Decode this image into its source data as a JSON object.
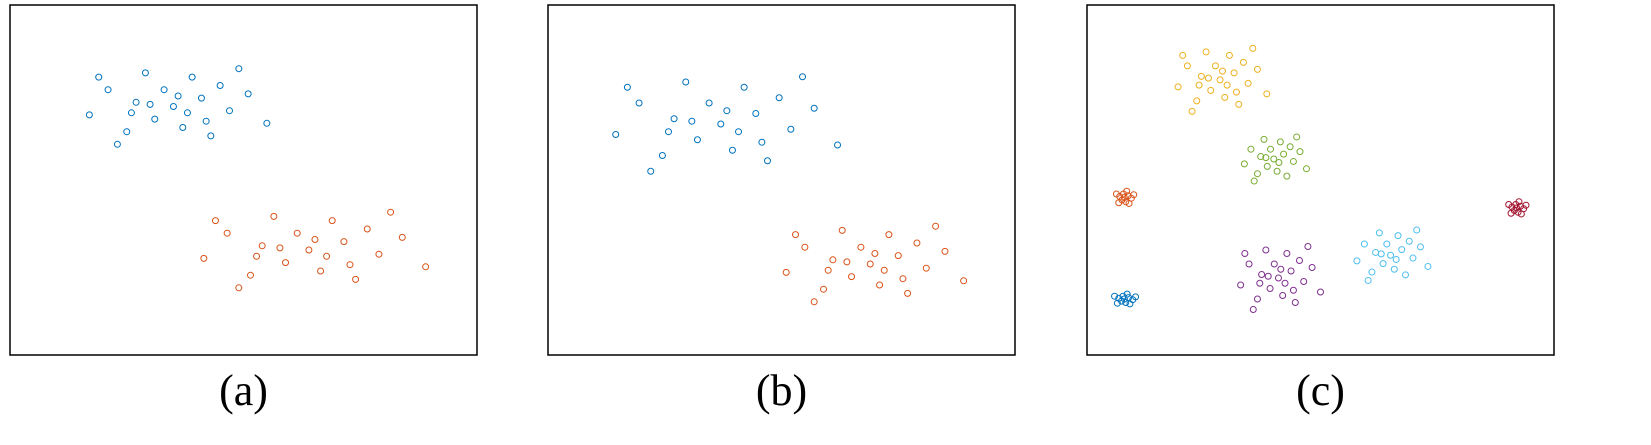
{
  "chart_data": [
    {
      "type": "scatter",
      "caption": "(a)",
      "xlim": [
        0,
        100
      ],
      "ylim": [
        0,
        100
      ],
      "series": [
        {
          "color": "#0072bd",
          "x": [
            35,
            41,
            27,
            37,
            31,
            47,
            21,
            39,
            25,
            51,
            33,
            43,
            17,
            45,
            29,
            55,
            23,
            38,
            30,
            49,
            19,
            42,
            26,
            36
          ],
          "values": [
            71,
            73.4,
            72.2,
            65,
            67.4,
            69.8,
            75.8,
            79.4,
            63.8,
            74.6,
            75.8,
            62.6,
            68.6,
            77,
            80.6,
            66.2,
            60.2,
            69.2,
            71.6,
            81.8,
            79.4,
            66.8,
            69.2,
            74
          ]
        },
        {
          "color": "#d95319",
          "x": [
            64,
            71.5,
            54,
            66.5,
            59,
            79,
            46.5,
            69,
            51.5,
            84,
            61.5,
            74,
            41.5,
            76.5,
            56.5,
            89,
            49,
            67.8,
            57.8,
            81.5,
            44,
            72.8,
            52.8,
            65.3
          ],
          "values": [
            30,
            32.4,
            31.2,
            24,
            26.4,
            28.8,
            34.8,
            38.4,
            22.8,
            33.6,
            34.8,
            21.6,
            27.6,
            36,
            39.6,
            25.2,
            19.2,
            28.2,
            30.6,
            40.8,
            38.4,
            25.8,
            28.2,
            33
          ]
        }
      ]
    },
    {
      "type": "scatter",
      "caption": "(b)",
      "xlim": [
        0,
        100
      ],
      "ylim": [
        0,
        100
      ],
      "series": [
        {
          "color": "#0072bd",
          "x": [
            37,
            44.5,
            27,
            39.5,
            32,
            52,
            19.5,
            42,
            24.5,
            57,
            34.5,
            47,
            14.5,
            49.5,
            29.5,
            62,
            22,
            40.8,
            30.8,
            54.5,
            17,
            45.8,
            25.8,
            38.3
          ],
          "values": [
            66,
            69,
            67.5,
            58.5,
            61.5,
            64.5,
            72,
            76.5,
            57,
            70.5,
            72,
            55.5,
            63,
            73.5,
            78,
            60,
            52.5,
            63.8,
            66.8,
            79.5,
            76.5,
            60.8,
            63.8,
            69.8
          ]
        },
        {
          "color": "#d95319",
          "x": [
            69,
            75,
            61,
            71,
            65,
            81,
            55,
            73,
            59,
            85,
            67,
            77,
            51,
            79,
            63,
            89,
            57,
            72,
            64,
            83,
            53,
            76,
            60,
            70
          ],
          "values": [
            26,
            28.4,
            27.2,
            20,
            22.4,
            24.8,
            30.8,
            34.4,
            18.8,
            29.6,
            30.8,
            17.6,
            23.6,
            32,
            35.6,
            21.2,
            15.2,
            24.2,
            26.6,
            36.8,
            34.4,
            21.8,
            24.2,
            29
          ]
        }
      ]
    },
    {
      "type": "scatter",
      "caption": "(c)",
      "xlim": [
        0,
        100
      ],
      "ylim": [
        0,
        100
      ],
      "series": [
        {
          "color": "#edb120",
          "x": [
            28.5,
            31.5,
            24.5,
            29.5,
            26.5,
            34.5,
            21.5,
            30.5,
            23.5,
            36.5,
            27.5,
            32.5,
            19.5,
            33.5,
            25.5,
            38.5,
            22.5,
            30,
            26,
            35.5,
            20.5,
            32,
            24,
            29
          ],
          "values": [
            78.6,
            80.6,
            79.6,
            73.6,
            75.6,
            77.6,
            82.6,
            85.6,
            72.6,
            81.6,
            82.6,
            71.6,
            76.6,
            83.6,
            86.6,
            74.6,
            69.6,
            77.1,
            79.1,
            87.6,
            85.6,
            75.1,
            77.1,
            81.1
          ]
        },
        {
          "color": "#77ac30",
          "x": [
            40,
            42.1,
            37.2,
            40.7,
            38.6,
            44.2,
            35.1,
            41.4,
            36.5,
            45.6,
            39.3,
            42.8,
            33.7,
            43.5,
            37.9,
            47,
            35.8,
            41.1,
            38.3,
            44.9
          ],
          "values": [
            56,
            57.4,
            56.7,
            52.5,
            53.9,
            55.3,
            58.8,
            60.9,
            51.8,
            58.1,
            58.8,
            51.1,
            54.6,
            59.5,
            61.6,
            53.2,
            49.7,
            55,
            56.4,
            62.3
          ]
        },
        {
          "color": "#d95319",
          "x": [
            8,
            8.8,
            7,
            8.3,
            7.5,
            9.5,
            6.3,
            8.5,
            6.8,
            10,
            7.8,
            9
          ],
          "values": [
            45,
            45.5,
            45.3,
            43.8,
            44.3,
            44.8,
            46,
            46.8,
            43.5,
            45.8,
            46,
            43.3
          ]
        },
        {
          "color": "#a2142f",
          "x": [
            92,
            92.8,
            91,
            92.3,
            91.5,
            93.5,
            90.3,
            92.5,
            90.8,
            94,
            91.8,
            93
          ],
          "values": [
            42,
            42.5,
            42.3,
            40.8,
            41.3,
            41.8,
            43,
            43.8,
            40.5,
            42.8,
            43,
            40.3
          ]
        },
        {
          "color": "#7e2f8e",
          "x": [
            41,
            43.7,
            37.4,
            41.9,
            39.2,
            46.4,
            34.7,
            42.8,
            36.5,
            48.2,
            40.1,
            44.6,
            32.9,
            45.5,
            38.3,
            50,
            35.6,
            42.4,
            38.8,
            47.3,
            33.8,
            44.2,
            37,
            41.5
          ],
          "values": [
            22,
            24,
            23,
            17,
            19,
            21,
            26,
            29,
            16,
            25,
            26,
            15,
            20,
            27,
            30,
            18,
            13,
            20.5,
            22.5,
            31,
            29,
            18.5,
            20.5,
            24.5
          ]
        },
        {
          "color": "#4dbeee",
          "x": [
            65,
            67.4,
            61.8,
            65.8,
            63.4,
            69.8,
            59.4,
            66.6,
            61,
            71.4,
            64.2,
            68.2,
            57.8,
            69,
            62.6,
            73,
            60.2,
            66.2,
            63,
            70.6
          ],
          "values": [
            28.5,
            30.1,
            29.3,
            24.5,
            26.1,
            27.7,
            31.7,
            34.1,
            23.7,
            30.9,
            31.7,
            22.9,
            26.9,
            32.5,
            34.9,
            25.3,
            21.3,
            27.3,
            28.9,
            35.7
          ]
        },
        {
          "color": "#0072bd",
          "x": [
            8,
            8.9,
            6.8,
            8.3,
            7.4,
            9.8,
            5.9,
            8.6,
            6.5,
            10.4,
            7.7,
            9.2
          ],
          "values": [
            16,
            16.4,
            16.2,
            15,
            15.4,
            15.8,
            16.8,
            17.4,
            14.8,
            16.6,
            16.8,
            14.6
          ]
        }
      ]
    }
  ]
}
